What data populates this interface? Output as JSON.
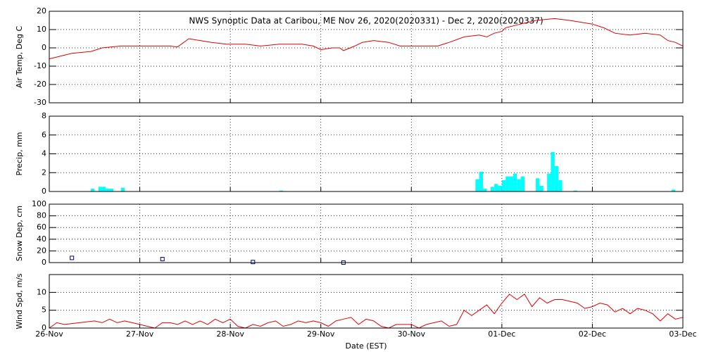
{
  "chart_data": [
    {
      "type": "line",
      "title": "NWS Synoptic Data at Caribou, ME   Nov 26, 2020(2020331) - Dec  2, 2020(2020337)",
      "ylabel": "Air Temp, Deg C",
      "color": "#e00000",
      "x": [
        0,
        6,
        11,
        14,
        19,
        32,
        34,
        35,
        37,
        40,
        43,
        47,
        52,
        56,
        61,
        67,
        70,
        72,
        75,
        77,
        78,
        81,
        83,
        86,
        90,
        93,
        103,
        106,
        110,
        114,
        116,
        118,
        120,
        121,
        125,
        129,
        134,
        138,
        144,
        147,
        150,
        154,
        158,
        162,
        164,
        166,
        168
      ],
      "values": [
        -6,
        -3,
        -2,
        0,
        1,
        1,
        0.5,
        2,
        5,
        4,
        3,
        2,
        2,
        1,
        2,
        2,
        1,
        -1,
        0,
        0,
        -1.5,
        1,
        3,
        4,
        3,
        1,
        1,
        3,
        6,
        7,
        6,
        8,
        9,
        11,
        13,
        15,
        16,
        15,
        13,
        11,
        8,
        7,
        8,
        7,
        4,
        3,
        1
      ],
      "xlim": [
        0,
        168
      ],
      "xticks": [
        0,
        24,
        48,
        72,
        96,
        120,
        144,
        168
      ],
      "ylim": [
        -30,
        20
      ],
      "yticks": [
        -30,
        -20,
        -10,
        0,
        10,
        20
      ],
      "grid": true
    },
    {
      "type": "bar",
      "ylabel": "Precip, mm",
      "color": "#00ffff",
      "x": [
        11,
        13,
        14,
        15,
        16,
        19,
        61,
        113,
        114,
        115,
        117,
        118,
        119,
        120,
        121,
        122,
        123,
        124,
        125,
        129,
        130,
        132,
        133,
        134,
        135,
        139,
        165
      ],
      "values": [
        0.3,
        0.5,
        0.5,
        0.3,
        0.3,
        0.4,
        0.1,
        1.3,
        2.1,
        0.3,
        0.5,
        0.8,
        0.6,
        1.2,
        1.6,
        1.6,
        1.9,
        1.3,
        1.6,
        1.4,
        0.6,
        1.9,
        4.2,
        2.7,
        1.2,
        0.1,
        0.2
      ],
      "xlim": [
        0,
        168
      ],
      "xticks": [
        0,
        24,
        48,
        72,
        96,
        120,
        144,
        168
      ],
      "ylim": [
        0,
        8
      ],
      "yticks": [
        0,
        2,
        4,
        6,
        8
      ],
      "grid": true
    },
    {
      "type": "scatter",
      "ylabel": "Snow Dep, cm",
      "color": "#000080",
      "x": [
        6,
        30,
        54,
        78
      ],
      "values": [
        8,
        6,
        1,
        0
      ],
      "xlim": [
        0,
        168
      ],
      "xticks": [
        0,
        24,
        48,
        72,
        96,
        120,
        144,
        168
      ],
      "ylim": [
        0,
        100
      ],
      "yticks": [
        0,
        20,
        40,
        60,
        80,
        100
      ],
      "grid": true
    },
    {
      "type": "line",
      "ylabel": "Wind Spd, m/s",
      "xlabel": "Date (EST)",
      "color": "#e00000",
      "x": [
        0,
        2,
        4,
        8,
        12,
        14,
        16,
        18,
        20,
        22,
        24,
        26,
        28,
        30,
        32,
        34,
        36,
        38,
        40,
        42,
        44,
        46,
        48,
        50,
        52,
        54,
        56,
        58,
        60,
        62,
        64,
        66,
        68,
        70,
        72,
        74,
        76,
        78,
        80,
        82,
        84,
        86,
        88,
        90,
        92,
        94,
        96,
        98,
        100,
        102,
        104,
        106,
        108,
        110,
        112,
        114,
        116,
        118,
        120,
        122,
        124,
        126,
        128,
        130,
        132,
        134,
        136,
        138,
        140,
        142,
        144,
        146,
        148,
        150,
        152,
        154,
        156,
        158,
        160,
        162,
        164,
        166,
        168
      ],
      "values": [
        0,
        1.5,
        1,
        1.5,
        2,
        1.5,
        2.5,
        1.5,
        2,
        1.5,
        1,
        0.5,
        0,
        1.5,
        1.5,
        1,
        2,
        1,
        2,
        1,
        2.5,
        1.5,
        2.5,
        0.5,
        0,
        1,
        0.5,
        1.5,
        2,
        0.5,
        1,
        2,
        1.5,
        2,
        1.5,
        0.5,
        2,
        2.5,
        3,
        1,
        2.5,
        2,
        0.5,
        0,
        1,
        1,
        1,
        0,
        1,
        1.5,
        2,
        0.5,
        1,
        5,
        3.5,
        5,
        6.5,
        4,
        7,
        9.5,
        8,
        9.5,
        6,
        8.5,
        7,
        8,
        8,
        7.5,
        7,
        5.5,
        6,
        7,
        6.5,
        4.5,
        5.5,
        4,
        5.5,
        5,
        4,
        2,
        4,
        2.5,
        3
      ],
      "xlim": [
        0,
        168
      ],
      "xticks": [
        {
          "value": 0,
          "label": "26-Nov"
        },
        {
          "value": 24,
          "label": "27-Nov"
        },
        {
          "value": 48,
          "label": "28-Nov"
        },
        {
          "value": 72,
          "label": "29-Nov"
        },
        {
          "value": 96,
          "label": "30-Nov"
        },
        {
          "value": 120,
          "label": "01-Dec"
        },
        {
          "value": 144,
          "label": "02-Dec"
        },
        {
          "value": 168,
          "label": "03-Dec"
        }
      ],
      "ylim": [
        0,
        15
      ],
      "yticks": [
        0,
        5,
        10
      ],
      "grid": true
    }
  ]
}
